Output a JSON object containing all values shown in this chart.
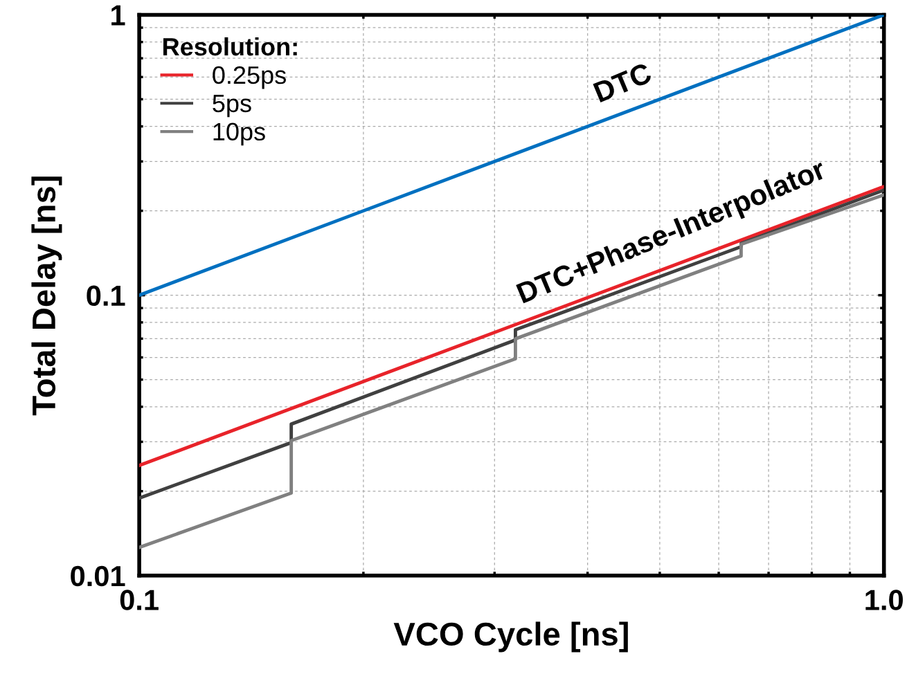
{
  "chart_data": {
    "type": "line",
    "xlabel": "VCO Cycle [ns]",
    "ylabel": "Total Delay [ns]",
    "log": "xy",
    "xlim": [
      0.1,
      1.0
    ],
    "xticks": [
      0.1,
      {
        "value": 1.0,
        "label": "1.0"
      }
    ],
    "ylim": [
      0.01,
      1
    ],
    "yticks": [
      0.01,
      0.1,
      1
    ],
    "grid": true,
    "legend": "top left",
    "legend_title": "Resolution:",
    "line_style": "solid",
    "marker": "none",
    "series": [
      {
        "color": "#0070c0",
        "x": [
          0.1,
          1.0
        ],
        "values": [
          0.1,
          1.0
        ]
      },
      {
        "name": "0.25ps",
        "color": "#e8232a",
        "x": [
          0.1,
          1.0
        ],
        "values": [
          0.0247,
          0.244
        ]
      },
      {
        "name": "5ps",
        "color": "#404040",
        "x": [
          0.1,
          0.16,
          0.16,
          0.32,
          0.32,
          0.643,
          0.643,
          1.0
        ],
        "values": [
          0.0189,
          0.0298,
          0.0347,
          0.0692,
          0.0753,
          0.149,
          0.153,
          0.237
        ]
      },
      {
        "name": "10ps",
        "color": "#808080",
        "x": [
          0.1,
          0.16,
          0.16,
          0.32,
          0.32,
          0.643,
          0.643,
          1.0
        ],
        "values": [
          0.0126,
          0.0197,
          0.0303,
          0.0593,
          0.0699,
          0.138,
          0.152,
          0.228
        ]
      }
    ],
    "annotations": [
      "DTC",
      "DTC+Phase-Interpolator"
    ]
  }
}
